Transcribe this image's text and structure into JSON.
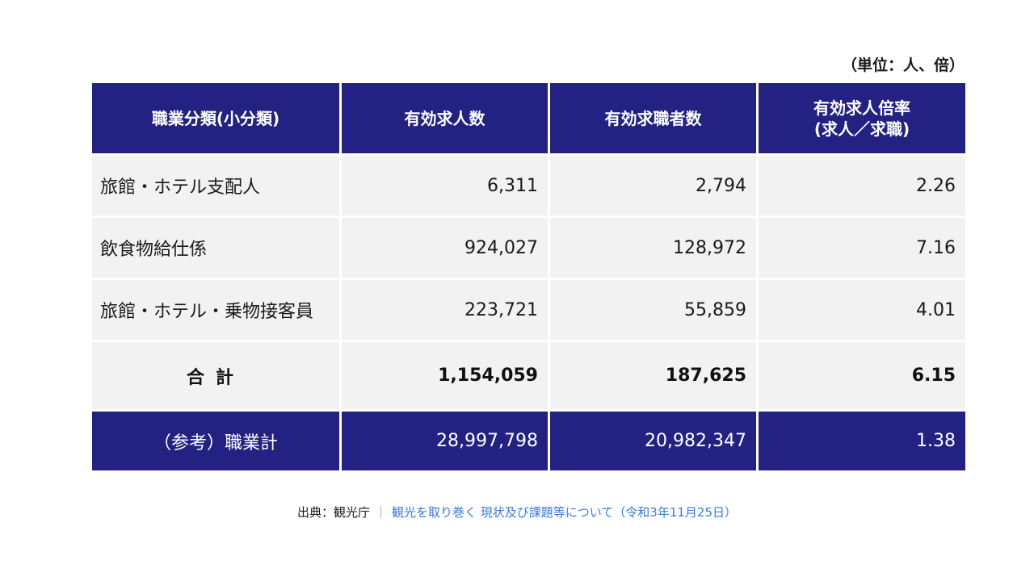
{
  "unit_note": "（単位：人、倍）",
  "table": {
    "headers": [
      "職業分類(小分類)",
      "有効求人数",
      "有効求職者数",
      "有効求人倍率\n(求人／求職)"
    ],
    "rows": [
      [
        "旅館・ホテル支配人",
        "6,311",
        "2,794",
        "2.26"
      ],
      [
        "飲食物給仕係",
        "924,027",
        "128,972",
        "7.16"
      ],
      [
        "旅館・ホテル・乗物接客員",
        "223,721",
        "55,859",
        "4.01"
      ]
    ],
    "total": [
      "合計",
      "1,154,059",
      "187,625",
      "6.15"
    ],
    "reference": [
      "（参考）職業計",
      "28,997,798",
      "20,982,347",
      "1.38"
    ]
  },
  "source": {
    "label": "出典：観光庁",
    "separator": "｜",
    "link_text": "観光を取り巻く 現状及び課題等について（令和3年11月25日）"
  },
  "colors": {
    "header_bg": "#232283",
    "row_bg": "#f2f2f2",
    "link": "#3a7bd5"
  }
}
